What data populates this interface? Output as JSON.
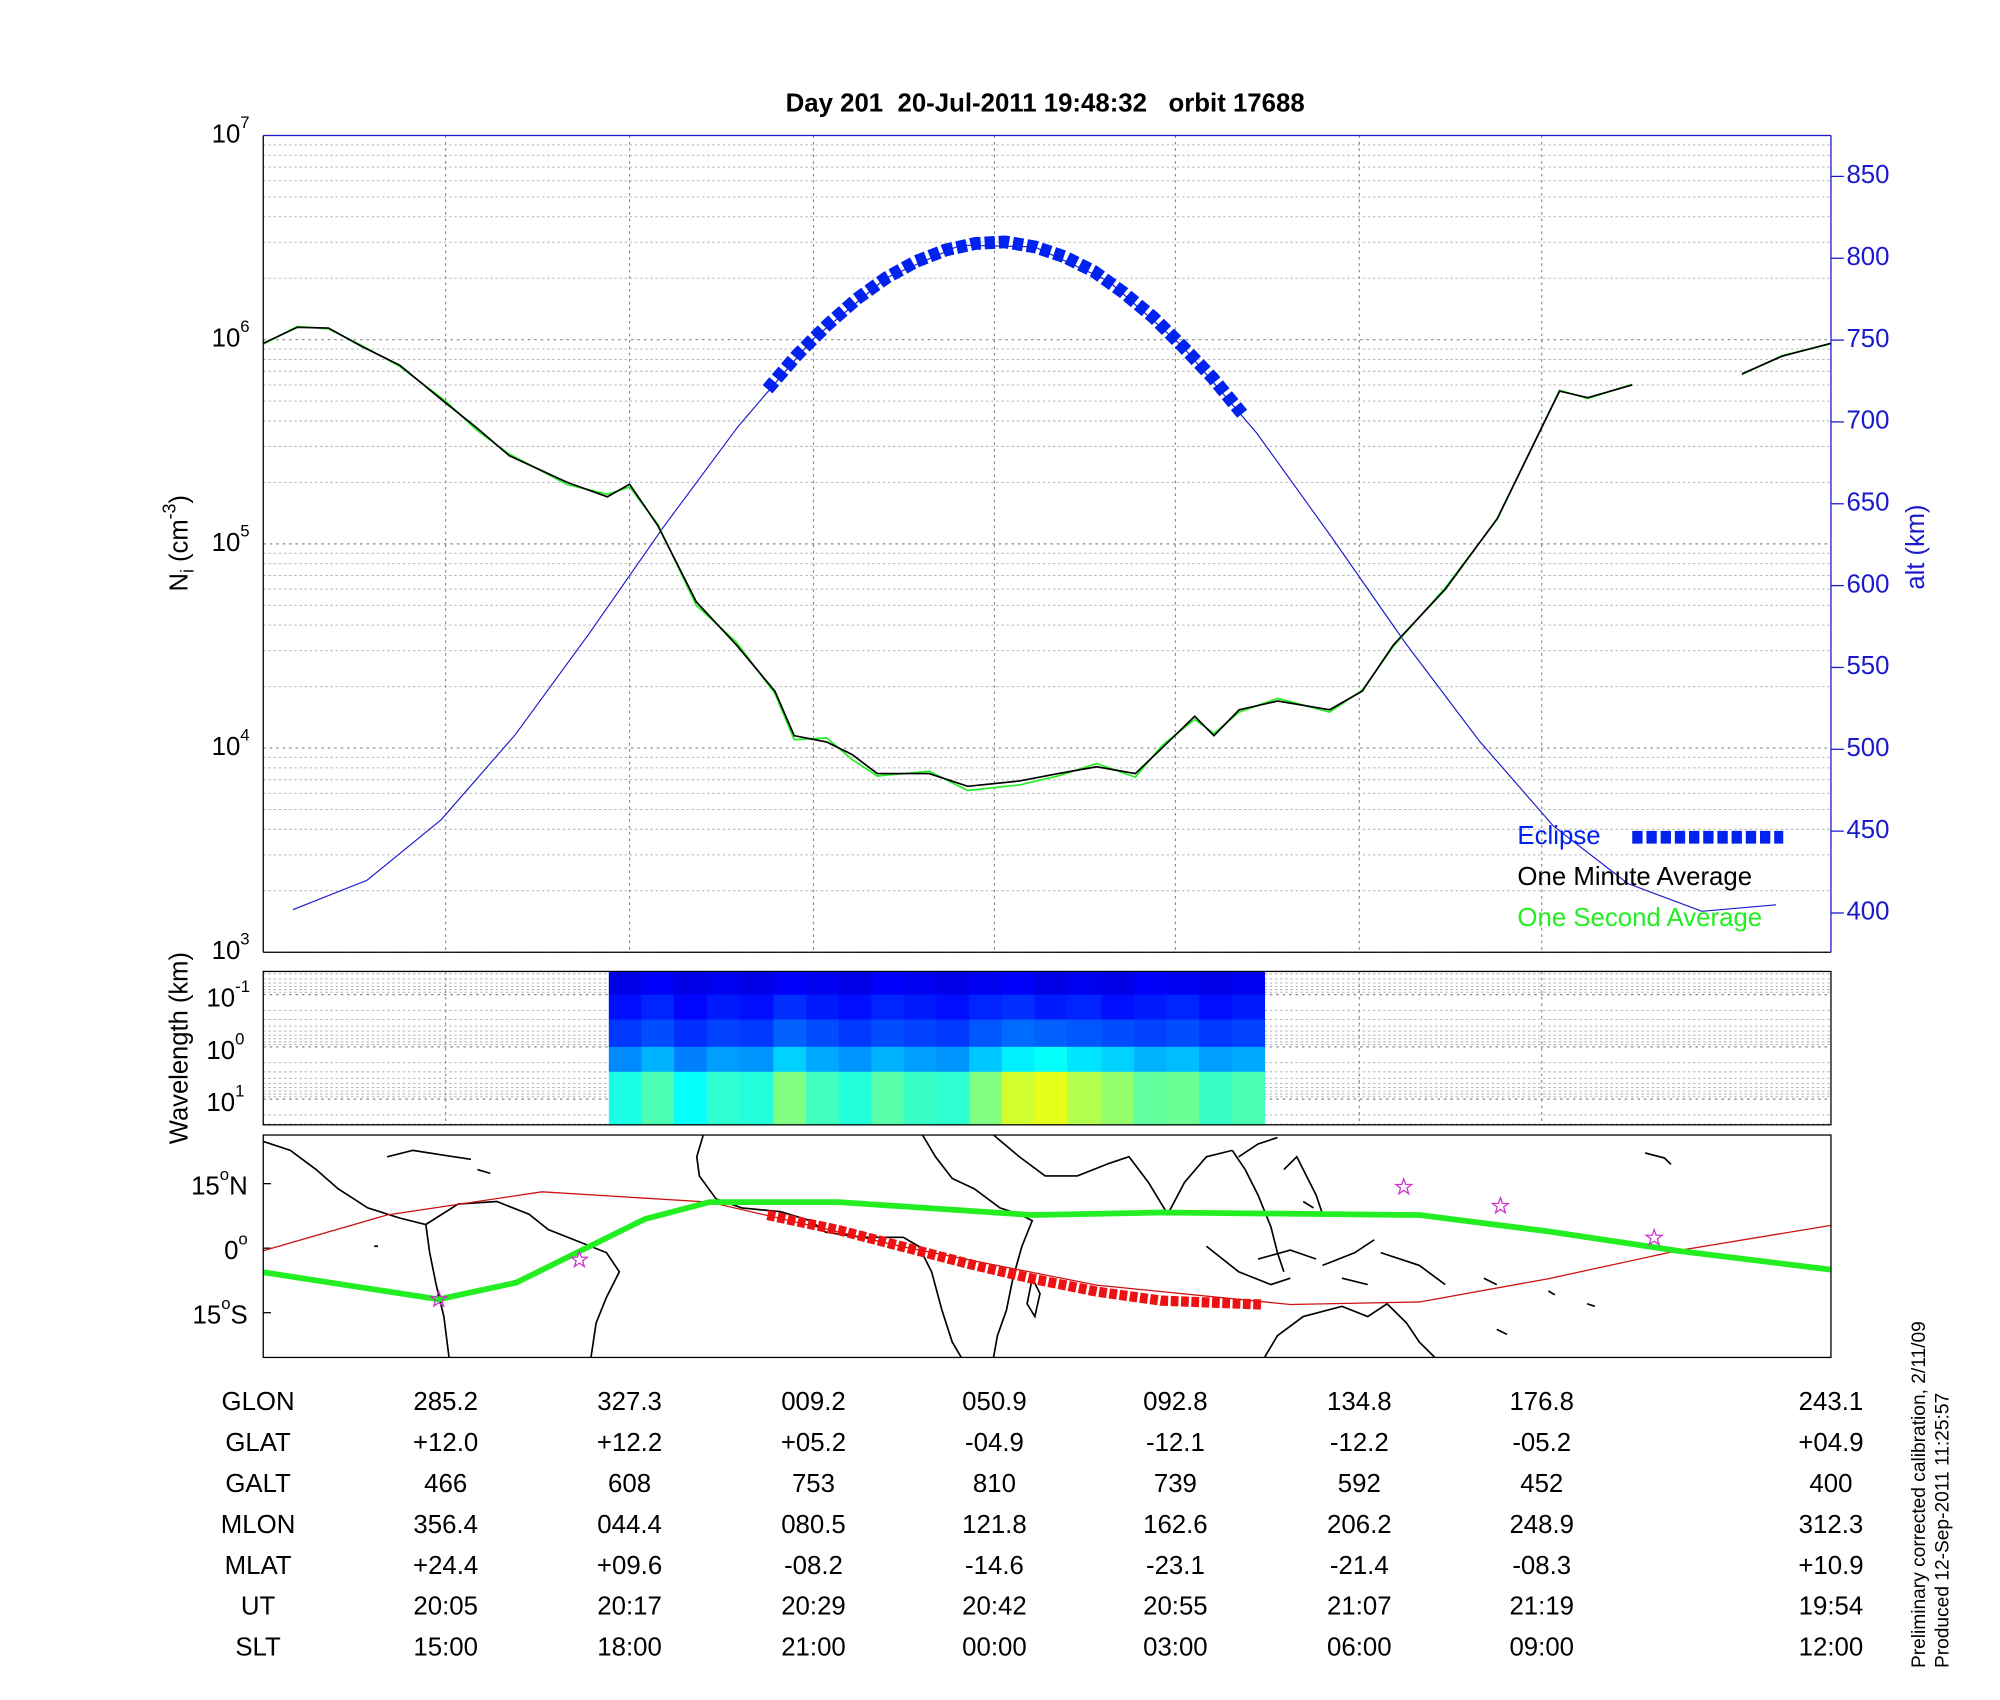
{
  "chart_data": [
    {
      "type": "line",
      "title": "Day 201  20-Jul-2011 19:48:32   orbit 17688",
      "y_label": [
        "N",
        "i",
        " (cm",
        "-3",
        ")"
      ],
      "y2_label": "alt (km)",
      "y2_color": "#1a1acc",
      "y_scale": "log",
      "grid": true,
      "legend": "lower right",
      "xlim": [
        1193,
        1298.7
      ],
      "xticks": [
        1205.3,
        1217.7,
        1230.1,
        1242.3,
        1254.5,
        1266.9,
        1279.2
      ],
      "ylim": [
        1000,
        10000000
      ],
      "yticks": [
        {
          "value": 1000,
          "label": [
            "10",
            "3"
          ]
        },
        {
          "value": 10000,
          "label": [
            "10",
            "4"
          ]
        },
        {
          "value": 100000,
          "label": [
            "10",
            "5"
          ]
        },
        {
          "value": 1000000,
          "label": [
            "10",
            "6"
          ]
        },
        {
          "value": 10000000,
          "label": [
            "10",
            "7"
          ]
        }
      ],
      "y2lim": [
        376,
        875
      ],
      "y2ticks": [
        400,
        450,
        500,
        550,
        600,
        650,
        700,
        750,
        800,
        850
      ],
      "series": [
        {
          "name": "Eclipse",
          "color": "#0022ee",
          "axis": "y2",
          "style": "squares",
          "x": [
            1227,
            1229,
            1231,
            1233,
            1235,
            1237,
            1239,
            1241,
            1243,
            1245,
            1247,
            1249,
            1251,
            1253,
            1255,
            1257,
            1259
          ],
          "values": [
            720,
            741,
            759,
            775,
            788,
            798,
            805,
            809,
            810,
            807,
            801,
            792,
            779,
            764,
            746,
            727,
            705
          ]
        },
        {
          "name": "One Minute Average",
          "color": "#000000",
          "style": "line",
          "x": [
            1193,
            1195.3,
            1197.4,
            1199.6,
            1202.2,
            1205.3,
            1207.4,
            1209.6,
            1213.5,
            1216.2,
            1217.7,
            1219.6,
            1222.2,
            1224.9,
            1227.5,
            1228.8,
            1231.0,
            1232.7,
            1234.4,
            1237.9,
            1240.5,
            1244.0,
            1246.6,
            1249.2,
            1251.8,
            1253.6,
            1255.8,
            1257.1,
            1258.8,
            1261.4,
            1264.9,
            1267.1,
            1269.2,
            1272.7,
            1276.2,
            1280.4,
            1282.3,
            1285.3,
            1290,
            1292.7,
            1295.4,
            1298.7
          ],
          "values": [
            960000,
            1150000,
            1140000,
            930000,
            750000,
            490000,
            370000,
            270000,
            200000,
            170000,
            196000,
            123000,
            52000,
            32000,
            19000,
            11500,
            10700,
            9300,
            7500,
            7500,
            6500,
            6900,
            7500,
            8100,
            7500,
            10000,
            14300,
            11500,
            15400,
            17000,
            15400,
            19000,
            32000,
            60000,
            133000,
            560000,
            520000,
            600000,
            null,
            680000,
            830000,
            960000
          ]
        },
        {
          "name": "One Second Average",
          "color": "#22ee22",
          "style": "line",
          "x": [
            1193,
            1195.3,
            1197.4,
            1199.6,
            1202.2,
            1205.3,
            1207.4,
            1209.6,
            1213.5,
            1216.2,
            1217.7,
            1219.6,
            1222.2,
            1224.9,
            1227.5,
            1228.8,
            1231.0,
            1232.7,
            1234.4,
            1237.9,
            1240.5,
            1244.0,
            1246.6,
            1249.2,
            1251.8,
            1253.6,
            1255.8,
            1257.1,
            1258.8,
            1261.4,
            1264.9,
            1267.1,
            1269.2,
            1272.7,
            1276.2,
            1280.4,
            1282.3,
            1285.3,
            1290,
            1292.7,
            1295.4,
            1298.7
          ],
          "values": [
            950000,
            1160000,
            1130000,
            940000,
            740000,
            500000,
            360000,
            275000,
            195000,
            175000,
            190000,
            125000,
            50000,
            33000,
            18500,
            11000,
            11200,
            8800,
            7300,
            7700,
            6200,
            6600,
            7300,
            8400,
            7200,
            10300,
            13800,
            11800,
            15000,
            17500,
            15000,
            19200,
            31500,
            61000,
            132000,
            565000,
            515000,
            605000,
            null,
            675000,
            835000,
            955000
          ]
        },
        {
          "color": "#1a1acc",
          "axis": "y2",
          "style": "thin",
          "x": [
            1195,
            1200,
            1205,
            1210,
            1215,
            1220,
            1225,
            1230,
            1235,
            1240,
            1245,
            1250,
            1255,
            1260,
            1265,
            1270,
            1275,
            1280,
            1285,
            1290,
            1295
          ],
          "values": [
            402,
            420,
            457,
            509,
            571,
            636,
            697,
            750,
            788,
            808,
            807,
            786,
            746,
            693,
            630,
            565,
            505,
            453,
            418,
            401,
            405
          ]
        }
      ]
    },
    {
      "type": "heatmap",
      "y_label": "Wavelength (km)",
      "y_scale": "log",
      "y_inverted": true,
      "grid": true,
      "xlim": [
        1193,
        1298.7
      ],
      "xticks": [
        1205.3,
        1217.7,
        1230.1,
        1242.3,
        1254.5,
        1266.9,
        1279.2
      ],
      "ylim": [
        0.036,
        31
      ],
      "yticks": [
        {
          "value": 0.1,
          "label": [
            "10",
            "-1"
          ]
        },
        {
          "value": 1,
          "label": [
            "10",
            "0"
          ]
        },
        {
          "value": 10,
          "label": [
            "10",
            "1"
          ]
        }
      ],
      "xbins": [
        1216.3,
        1218.5,
        1220.7,
        1222.9,
        1225.1,
        1227.4,
        1229.6,
        1231.8,
        1234.0,
        1236.2,
        1238.4,
        1240.6,
        1242.8,
        1245.0,
        1247.2,
        1249.5,
        1251.7,
        1253.9,
        1256.1,
        1258.3,
        1260.5
      ],
      "ybins": [
        0.036,
        0.1,
        0.3,
        1,
        3,
        31
      ],
      "zlim": [
        0,
        1
      ],
      "z": [
        [
          0.1,
          0.12,
          0.1,
          0.11,
          0.1,
          0.12,
          0.11,
          0.1,
          0.12,
          0.11,
          0.1,
          0.11,
          0.12,
          0.1,
          0.11,
          0.1,
          0.12,
          0.11,
          0.1,
          0.11
        ],
        [
          0.14,
          0.16,
          0.13,
          0.15,
          0.14,
          0.17,
          0.15,
          0.14,
          0.16,
          0.15,
          0.14,
          0.16,
          0.17,
          0.15,
          0.16,
          0.14,
          0.15,
          0.16,
          0.14,
          0.15
        ],
        [
          0.18,
          0.2,
          0.17,
          0.19,
          0.18,
          0.22,
          0.2,
          0.18,
          0.2,
          0.19,
          0.18,
          0.21,
          0.23,
          0.22,
          0.21,
          0.2,
          0.19,
          0.2,
          0.18,
          0.19
        ],
        [
          0.26,
          0.3,
          0.25,
          0.28,
          0.27,
          0.33,
          0.29,
          0.27,
          0.3,
          0.28,
          0.27,
          0.32,
          0.36,
          0.38,
          0.35,
          0.33,
          0.3,
          0.31,
          0.28,
          0.29
        ],
        [
          0.4,
          0.45,
          0.38,
          0.42,
          0.41,
          0.5,
          0.44,
          0.41,
          0.46,
          0.43,
          0.42,
          0.5,
          0.58,
          0.6,
          0.55,
          0.52,
          0.47,
          0.48,
          0.43,
          0.45
        ]
      ]
    },
    {
      "type": "map",
      "xlim": [
        243.1,
        603.1
      ],
      "ylim": [
        -25.4,
        26.3
      ],
      "yticks": [
        {
          "value": 15,
          "label": [
            "15",
            "o",
            "N"
          ]
        },
        {
          "value": 0,
          "label": [
            "0",
            "o"
          ]
        },
        {
          "value": -15,
          "label": [
            "15",
            "o",
            "S"
          ]
        }
      ],
      "series": [
        {
          "color": "#cc1111",
          "style": "thin",
          "x": [
            243.1,
            271.5,
            307.1,
            345.6,
            390.1,
            434.5,
            479.0,
            508.6,
            538.2,
            567.8,
            603.1
          ],
          "values": [
            -0.6,
            7.7,
            13.1,
            10.7,
            0.3,
            -8.6,
            -13.1,
            -12.5,
            -7.1,
            -0.6,
            5.3
          ]
        },
        {
          "color": "#22ee22",
          "style": "thick",
          "x": [
            243.1,
            283.4,
            301.2,
            330.8,
            345.6,
            375.2,
            419.7,
            449.3,
            508.6,
            538.2,
            567.8,
            603.1
          ],
          "values": [
            -5.6,
            -11.9,
            -8.0,
            6.8,
            10.7,
            10.7,
            7.7,
            8.3,
            7.7,
            3.9,
            -0.6,
            -5.0
          ]
        },
        {
          "color": "#ee1111",
          "style": "squares",
          "x": [
            358.9,
            375.2,
            390.1,
            404.9,
            419.7,
            434.5,
            449.3,
            472.4
          ],
          "values": [
            7.7,
            4.2,
            0.3,
            -3.6,
            -7.1,
            -10.1,
            -12.2,
            -13.1
          ]
        },
        {
          "color": "#cc33cc",
          "style": "stars",
          "x": [
            283.4,
            315.7,
            505.0,
            527.2,
            562.5
          ],
          "values": [
            -11.9,
            -2.7,
            14.2,
            9.8,
            2.4
          ]
        }
      ]
    }
  ],
  "table": {
    "rows": [
      {
        "label": "GLON",
        "values": [
          "285.2",
          "327.3",
          "009.2",
          "050.9",
          "092.8",
          "134.8",
          "176.8",
          "243.1"
        ]
      },
      {
        "label": "GLAT",
        "values": [
          "+12.0",
          "+12.2",
          "+05.2",
          "-04.9",
          "-12.1",
          "-12.2",
          "-05.2",
          "+04.9"
        ]
      },
      {
        "label": "GALT",
        "values": [
          "466",
          "608",
          "753",
          "810",
          "739",
          "592",
          "452",
          "400"
        ]
      },
      {
        "label": "MLON",
        "values": [
          "356.4",
          "044.4",
          "080.5",
          "121.8",
          "162.6",
          "206.2",
          "248.9",
          "312.3"
        ]
      },
      {
        "label": "MLAT",
        "values": [
          "+24.4",
          "+09.6",
          "-08.2",
          "-14.6",
          "-23.1",
          "-21.4",
          "-08.3",
          "+10.9"
        ]
      },
      {
        "label": "UT",
        "values": [
          "20:05",
          "20:17",
          "20:29",
          "20:42",
          "20:55",
          "21:07",
          "21:19",
          "19:54"
        ]
      },
      {
        "label": "SLT",
        "values": [
          "15:00",
          "18:00",
          "21:00",
          "00:00",
          "03:00",
          "06:00",
          "09:00",
          "12:00"
        ]
      }
    ]
  },
  "notes": [
    "Preliminary corrected calibration, 2/11/09",
    "Produced 12-Sep-2011 11:25:57"
  ]
}
